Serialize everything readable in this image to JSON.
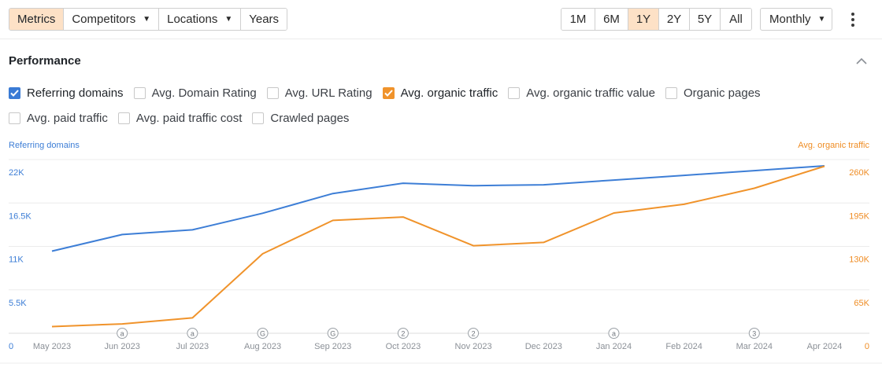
{
  "toolbar": {
    "tabs": [
      {
        "label": "Metrics",
        "active": true,
        "dropdown": false
      },
      {
        "label": "Competitors",
        "active": false,
        "dropdown": true
      },
      {
        "label": "Locations",
        "active": false,
        "dropdown": true
      },
      {
        "label": "Years",
        "active": false,
        "dropdown": false
      }
    ],
    "ranges": [
      "1M",
      "6M",
      "1Y",
      "2Y",
      "5Y",
      "All"
    ],
    "active_range": "1Y",
    "interval": "Monthly"
  },
  "section": {
    "title": "Performance"
  },
  "metrics_row1": [
    {
      "label": "Referring domains",
      "checked": true,
      "color": "#3a7bd5"
    },
    {
      "label": "Avg. Domain Rating",
      "checked": false
    },
    {
      "label": "Avg. URL Rating",
      "checked": false
    },
    {
      "label": "Avg. organic traffic",
      "checked": true,
      "color": "#f0932b"
    },
    {
      "label": "Avg. organic traffic value",
      "checked": false
    },
    {
      "label": "Organic pages",
      "checked": false
    }
  ],
  "metrics_row2": [
    {
      "label": "Avg. paid traffic",
      "checked": false
    },
    {
      "label": "Avg. paid traffic cost",
      "checked": false
    },
    {
      "label": "Crawled pages",
      "checked": false
    }
  ],
  "chart_data": {
    "type": "line",
    "categories": [
      "May 2023",
      "Jun 2023",
      "Jul 2023",
      "Aug 2023",
      "Sep 2023",
      "Oct 2023",
      "Nov 2023",
      "Dec 2023",
      "Jan 2024",
      "Feb 2024",
      "Mar 2024",
      "Apr 2024"
    ],
    "left_axis": {
      "title": "Referring domains",
      "ticks": [
        "0",
        "5.5K",
        "11K",
        "16.5K",
        "22K"
      ],
      "tick_values": [
        0,
        5500,
        11000,
        16500,
        22000
      ],
      "range": [
        0,
        22000
      ],
      "color": "#3d7ed6"
    },
    "right_axis": {
      "title": "Avg. organic traffic",
      "ticks": [
        "0",
        "65K",
        "130K",
        "195K",
        "260K"
      ],
      "tick_values": [
        0,
        65000,
        130000,
        195000,
        260000
      ],
      "range": [
        0,
        260000
      ],
      "color": "#ef8d25"
    },
    "series": [
      {
        "name": "Referring domains",
        "axis": "left",
        "color": "#3d7ed6",
        "values": [
          10400,
          12500,
          13100,
          15200,
          17700,
          19000,
          18700,
          18800,
          19400,
          20000,
          20600,
          21200
        ]
      },
      {
        "name": "Avg. organic traffic",
        "axis": "right",
        "color": "#f0932b",
        "values": [
          10000,
          14000,
          23000,
          119000,
          169000,
          174000,
          131000,
          136000,
          180000,
          193000,
          217000,
          250000
        ]
      }
    ],
    "annotations": [
      {
        "category": "Jun 2023",
        "label": "a"
      },
      {
        "category": "Jul 2023",
        "label": "a"
      },
      {
        "category": "Aug 2023",
        "label": "G"
      },
      {
        "category": "Sep 2023",
        "label": "G"
      },
      {
        "category": "Oct 2023",
        "label": "2"
      },
      {
        "category": "Nov 2023",
        "label": "2"
      },
      {
        "category": "Jan 2024",
        "label": "a"
      },
      {
        "category": "Mar 2024",
        "label": "3"
      }
    ]
  }
}
